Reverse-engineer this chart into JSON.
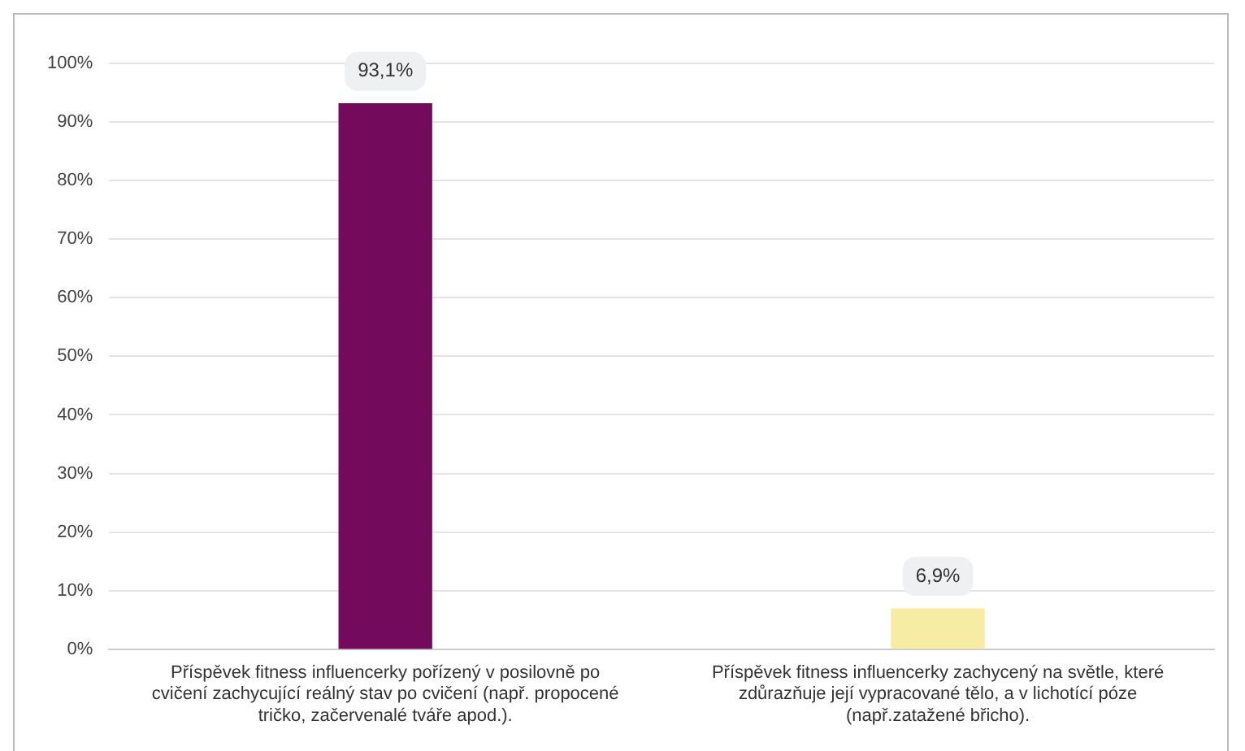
{
  "chart_data": {
    "type": "bar",
    "categories": [
      "Příspěvek fitness influencerky pořízený v posilovně po cvičení zachycující reálný stav po cvičení (např. propocené tričko, začervenalé tváře apod.).",
      "Příspěvek fitness influencerky zachycený na světle, které zdůrazňuje její vypracované tělo, a v lichotící póze (např.zatažené břicho)."
    ],
    "values": [
      93.1,
      6.9
    ],
    "colors": [
      "#730a5c",
      "#f7eca4"
    ],
    "value_labels": [
      "93,1%",
      "6,9%"
    ],
    "ylim": [
      0,
      100
    ],
    "yticks": [
      {
        "value": 0,
        "label": "0%"
      },
      {
        "value": 10,
        "label": "10%"
      },
      {
        "value": 20,
        "label": "20%"
      },
      {
        "value": 30,
        "label": "30%"
      },
      {
        "value": 40,
        "label": "40%"
      },
      {
        "value": 50,
        "label": "50%"
      },
      {
        "value": 60,
        "label": "60%"
      },
      {
        "value": 70,
        "label": "70%"
      },
      {
        "value": 80,
        "label": "80%"
      },
      {
        "value": 90,
        "label": "90%"
      },
      {
        "value": 100,
        "label": "100%"
      }
    ],
    "grid": "y"
  }
}
